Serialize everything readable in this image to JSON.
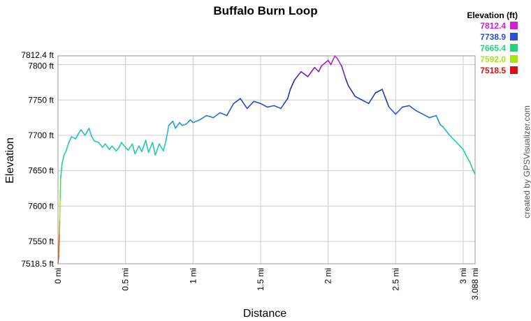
{
  "chart_data": {
    "type": "line",
    "title": "Buffalo Burn Loop",
    "xlabel": "Distance",
    "ylabel": "Elevation",
    "xlim": [
      0,
      3.088
    ],
    "ylim": [
      7518.5,
      7812.4
    ],
    "x_ticks": [
      {
        "value": 0,
        "label": "0 mi"
      },
      {
        "value": 0.5,
        "label": "0.5 mi"
      },
      {
        "value": 1,
        "label": "1 mi"
      },
      {
        "value": 1.5,
        "label": "1.5 mi"
      },
      {
        "value": 2,
        "label": "2 mi"
      },
      {
        "value": 2.5,
        "label": "2.5 mi"
      },
      {
        "value": 3,
        "label": "3 mi"
      },
      {
        "value": 3.088,
        "label": "3.088 mi"
      }
    ],
    "y_ticks": [
      {
        "value": 7518.5,
        "label": "7518.5 ft"
      },
      {
        "value": 7550,
        "label": "7550 ft"
      },
      {
        "value": 7600,
        "label": "7600 ft"
      },
      {
        "value": 7650,
        "label": "7650 ft"
      },
      {
        "value": 7700,
        "label": "7700 ft"
      },
      {
        "value": 7750,
        "label": "7750 ft"
      },
      {
        "value": 7800,
        "label": "7800 ft"
      },
      {
        "value": 7812.4,
        "label": "7812.4 ft"
      }
    ],
    "grid": true,
    "legend": {
      "title": "Elevation (ft)",
      "placement": "top-right",
      "entries": [
        {
          "label": "7812.4",
          "color": "#d21ed8"
        },
        {
          "label": "7738.9",
          "color": "#2a4fd6"
        },
        {
          "label": "7665.4",
          "color": "#1fd47c"
        },
        {
          "label": "7592.0",
          "color": "#a8e31a"
        },
        {
          "label": "7518.5",
          "color": "#d41414"
        }
      ]
    },
    "credit": "created by GPSVisualizer.com",
    "series": [
      {
        "x": [
          0,
          0.005,
          0.01,
          0.013,
          0.016,
          0.02,
          0.03,
          0.045,
          0.06,
          0.08,
          0.1,
          0.13,
          0.15,
          0.17,
          0.2,
          0.23,
          0.25,
          0.27,
          0.3,
          0.33,
          0.35,
          0.38,
          0.4,
          0.43,
          0.45,
          0.47,
          0.5,
          0.52,
          0.55,
          0.57,
          0.6,
          0.62,
          0.65,
          0.67,
          0.7,
          0.72,
          0.75,
          0.78,
          0.8,
          0.82,
          0.85,
          0.87,
          0.9,
          0.92,
          0.95,
          0.98,
          1.0,
          1.05,
          1.1,
          1.15,
          1.2,
          1.25,
          1.3,
          1.35,
          1.4,
          1.45,
          1.5,
          1.55,
          1.6,
          1.65,
          1.7,
          1.72,
          1.75,
          1.8,
          1.85,
          1.9,
          1.93,
          1.95,
          2.0,
          2.02,
          2.05,
          2.07,
          2.1,
          2.13,
          2.15,
          2.2,
          2.25,
          2.3,
          2.35,
          2.4,
          2.45,
          2.5,
          2.55,
          2.6,
          2.65,
          2.7,
          2.75,
          2.8,
          2.83,
          2.85,
          2.9,
          2.95,
          3.0,
          3.02,
          3.05,
          3.07,
          3.088
        ],
        "y": [
          7518.5,
          7530,
          7560,
          7580,
          7610,
          7640,
          7660,
          7672,
          7678,
          7690,
          7698,
          7695,
          7702,
          7708,
          7700,
          7710,
          7698,
          7692,
          7690,
          7683,
          7688,
          7680,
          7685,
          7678,
          7682,
          7690,
          7683,
          7679,
          7688,
          7674,
          7685,
          7677,
          7693,
          7676,
          7690,
          7672,
          7688,
          7678,
          7693,
          7714,
          7720,
          7710,
          7718,
          7714,
          7716,
          7722,
          7718,
          7722,
          7728,
          7725,
          7732,
          7728,
          7745,
          7752,
          7738,
          7748,
          7745,
          7740,
          7742,
          7738,
          7752,
          7765,
          7778,
          7790,
          7783,
          7796,
          7790,
          7798,
          7806,
          7800,
          7812.4,
          7808,
          7798,
          7780,
          7770,
          7755,
          7750,
          7745,
          7760,
          7765,
          7740,
          7730,
          7740,
          7742,
          7735,
          7730,
          7725,
          7728,
          7715,
          7712,
          7700,
          7690,
          7680,
          7672,
          7662,
          7652,
          7645
        ]
      }
    ]
  }
}
